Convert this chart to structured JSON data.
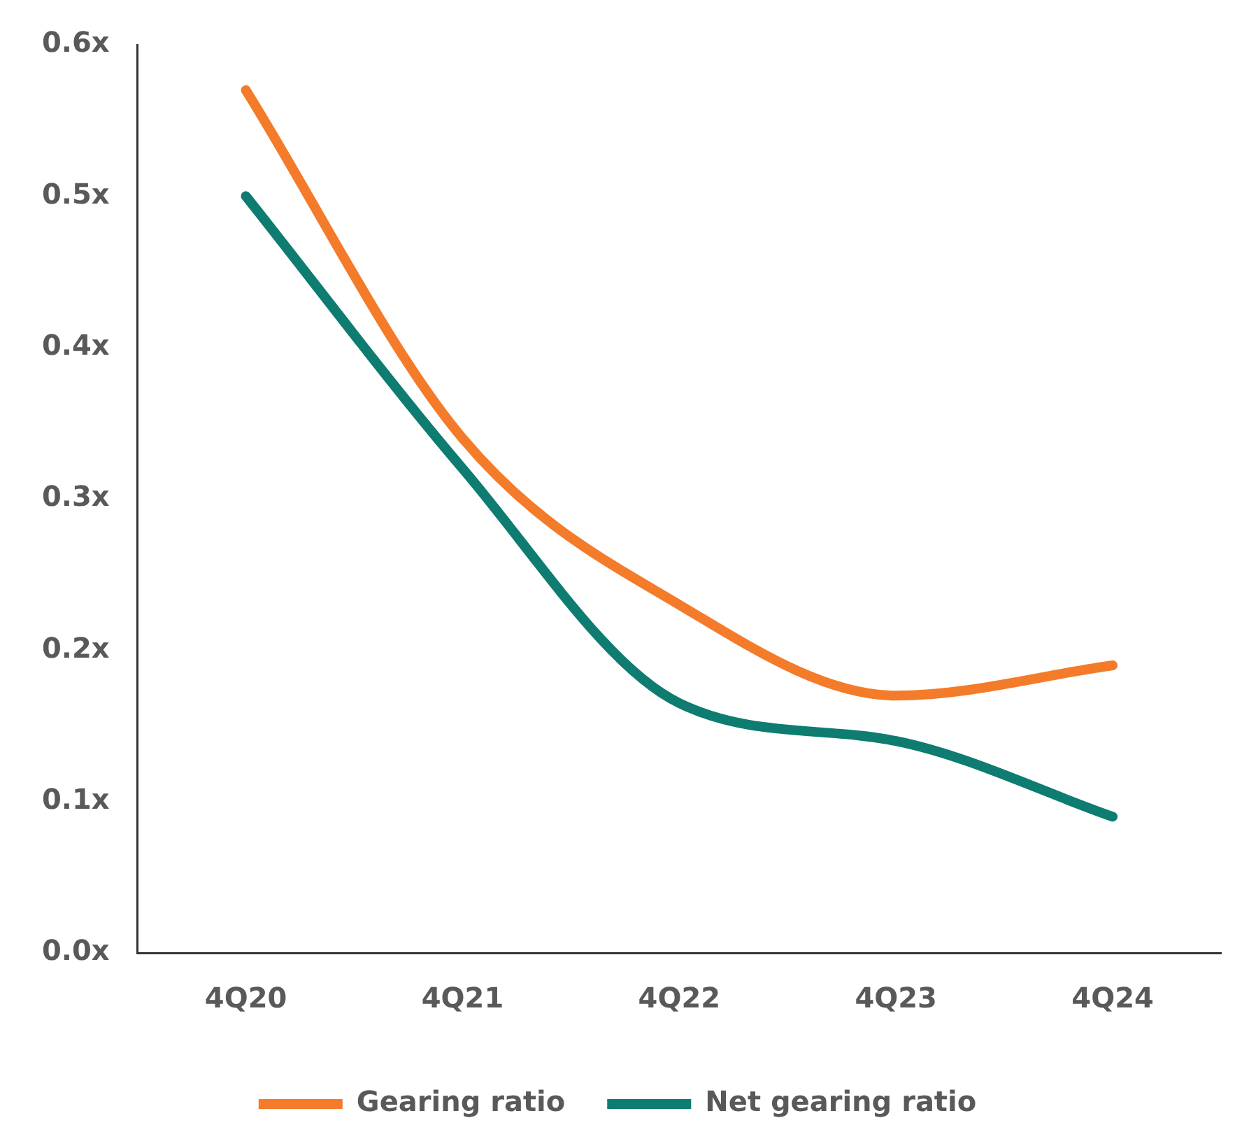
{
  "chart_data": {
    "type": "line",
    "categories": [
      "4Q20",
      "4Q21",
      "4Q22",
      "4Q23",
      "4Q24"
    ],
    "series": [
      {
        "name": "Gearing ratio",
        "color": "#f47b2a",
        "values": [
          0.57,
          0.34,
          0.23,
          0.17,
          0.19
        ]
      },
      {
        "name": "Net gearing ratio",
        "color": "#0e7c70",
        "values": [
          0.5,
          0.32,
          0.165,
          0.14,
          0.09
        ]
      }
    ],
    "ylim": [
      0,
      0.6
    ],
    "yticks": [
      {
        "value": 0,
        "label": "0.0x"
      },
      {
        "value": 0.1,
        "label": "0.1x"
      },
      {
        "value": 0.2,
        "label": "0.2x"
      },
      {
        "value": 0.3,
        "label": "0.3x"
      },
      {
        "value": 0.4,
        "label": "0.4x"
      },
      {
        "value": 0.5,
        "label": "0.5x"
      },
      {
        "value": 0.6,
        "label": "0.6x"
      }
    ],
    "grid": false,
    "legend": "bottom",
    "marker": "none",
    "line_style": "solid"
  }
}
